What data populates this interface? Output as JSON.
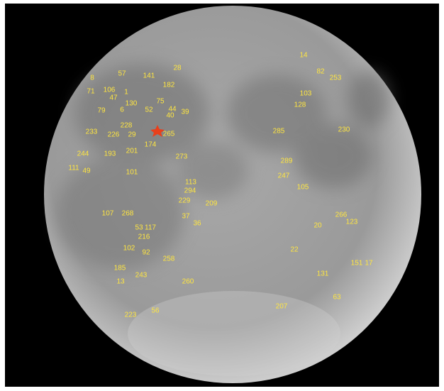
{
  "image": {
    "labels": [
      "14",
      "8",
      "57",
      "141",
      "28",
      "182",
      "106",
      "71",
      "47",
      "1",
      "130",
      "75",
      "52",
      "6",
      "79",
      "44",
      "39",
      "40",
      "103",
      "128",
      "253",
      "82",
      "228",
      "226",
      "29",
      "265",
      "174",
      "285",
      "230",
      "233",
      "193",
      "201",
      "244",
      "273",
      "289",
      "247",
      "105",
      "101",
      "113",
      "294",
      "229",
      "209",
      "266",
      "123",
      "20",
      "107",
      "268",
      "37",
      "36",
      "53",
      "117",
      "216",
      "102",
      "92",
      "22",
      "258",
      "151",
      "17",
      "131",
      "243",
      "260",
      "13",
      "63",
      "207",
      "56",
      "223",
      "185",
      "49",
      "111"
    ]
  }
}
